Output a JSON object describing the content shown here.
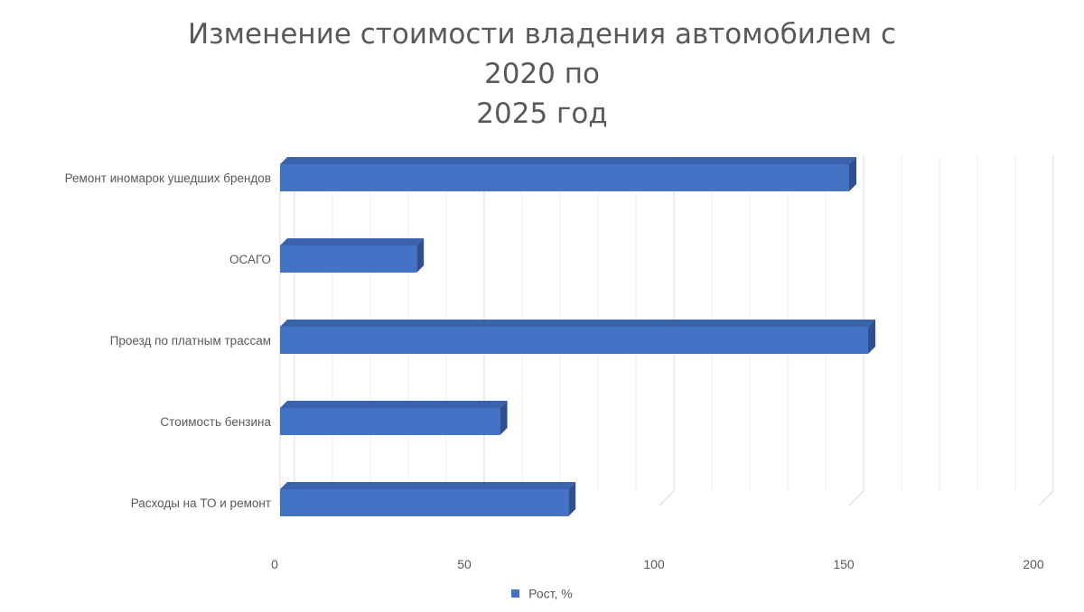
{
  "chart_data": {
    "type": "bar",
    "orientation": "horizontal",
    "style": "3d",
    "title": "Изменение стоимости владения автомобилем с 2020 по 2025 год",
    "title_lines": [
      "Изменение стоимости владения автомобилем с 2020 по",
      "2025 год"
    ],
    "categories": [
      "Ремонт иномарок ушедших брендов",
      "ОСАГО",
      "Проезд по платным трассам",
      "Стоимость бензина",
      "Расходы на ТО и ремонт"
    ],
    "series": [
      {
        "name": "Рост, %",
        "values": [
          150,
          36,
          155,
          58,
          76
        ]
      }
    ],
    "xlim": [
      0,
      200
    ],
    "x_ticks": [
      0,
      50,
      100,
      150,
      200
    ],
    "grid": true,
    "legend_position": "bottom",
    "colors": {
      "bar_front": "#4472c4",
      "bar_top": "#3a62ad",
      "bar_side": "#2f4f8f",
      "grid": "#d9d9d9",
      "text": "#595959"
    }
  }
}
